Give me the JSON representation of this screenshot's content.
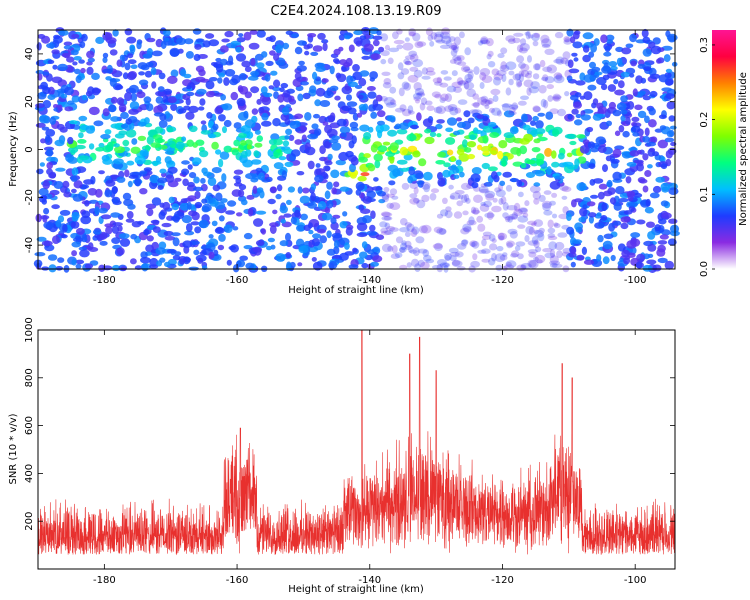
{
  "title": "C2E4.2024.108.13.19.R09",
  "chart_data": [
    {
      "type": "heatmap",
      "xlabel": "Height of straight line (km)",
      "ylabel": "Frequency (Hz)",
      "xlim": [
        -190,
        -94
      ],
      "ylim": [
        -50,
        50
      ],
      "xticks": [
        -180,
        -160,
        -140,
        -120,
        -100
      ],
      "yticks": [
        -40,
        -20,
        0,
        20,
        40
      ],
      "colorbar": {
        "label": "Normalized spectral amplitude",
        "range": [
          0.0,
          0.32
        ],
        "ticks": [
          "0.0",
          "0.1",
          "0.2",
          "0.3"
        ],
        "tick_values": [
          0.0,
          0.1,
          0.2,
          0.3
        ],
        "colormap": [
          "#ffffff",
          "#8a2be2",
          "#1e3cff",
          "#00bfff",
          "#00ff80",
          "#7fff00",
          "#ffff00",
          "#ff8000",
          "#ff0040",
          "#ff1493"
        ]
      },
      "high_intensity_bands": [
        {
          "x_range": [
            -185,
            -152
          ],
          "freq_center": 2,
          "peak": 0.14
        },
        {
          "x_range": [
            -142,
            -108
          ],
          "freq_center": 0,
          "peak": 0.22
        },
        {
          "x": -141,
          "freq": -10,
          "peak": 0.28
        }
      ],
      "low_intensity_regions": [
        {
          "x_range": [
            -138,
            -110
          ],
          "freq_range": [
            15,
            50
          ]
        },
        {
          "x_range": [
            -138,
            -110
          ],
          "freq_range": [
            -50,
            -15
          ]
        }
      ]
    },
    {
      "type": "line",
      "xlabel": "Height of straight line (km)",
      "ylabel": "SNR (10 * v/v)",
      "xlim": [
        -190,
        -94
      ],
      "ylim": [
        0,
        1000
      ],
      "xticks": [
        -180,
        -160,
        -140,
        -120,
        -100
      ],
      "yticks": [
        200,
        400,
        600,
        800,
        1000
      ],
      "color": "#e8302e",
      "baseline_range": [
        60,
        300
      ],
      "peaks": [
        {
          "x": -159.5,
          "value": 590
        },
        {
          "x": -141.2,
          "value": 1000
        },
        {
          "x": -134,
          "value": 900
        },
        {
          "x": -132.5,
          "value": 970
        },
        {
          "x": -130,
          "value": 830
        },
        {
          "x": -111,
          "value": 860
        },
        {
          "x": -109.5,
          "value": 800
        }
      ]
    }
  ]
}
